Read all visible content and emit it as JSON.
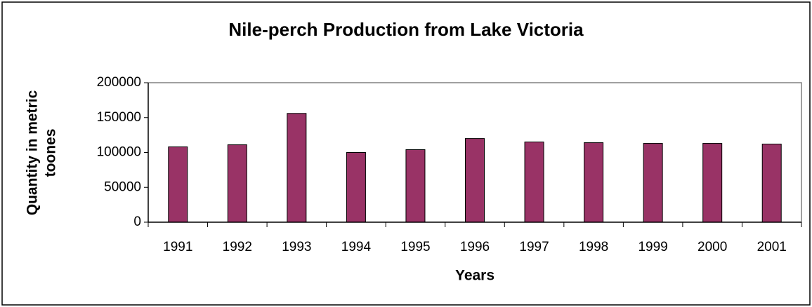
{
  "chart_data": {
    "type": "bar",
    "title": "Nile-perch Production from Lake Victoria",
    "x_label": "Years",
    "y_label": [
      "Quantity in metric",
      "toones"
    ],
    "categories": [
      "1991",
      "1992",
      "1993",
      "1994",
      "1995",
      "1996",
      "1997",
      "1998",
      "1999",
      "2000",
      "2001"
    ],
    "values": [
      108000,
      111000,
      156000,
      100000,
      104000,
      120000,
      115000,
      114000,
      113000,
      113000,
      112000
    ],
    "color": "#993366",
    "ylim": [
      0,
      200000
    ],
    "yticks": [
      0,
      50000,
      100000,
      150000,
      200000
    ],
    "grid": false
  }
}
